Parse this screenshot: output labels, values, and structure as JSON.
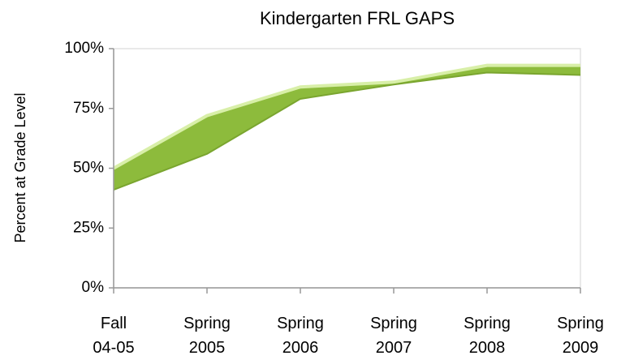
{
  "chart_data": {
    "type": "area_band",
    "title": "Kindergarten FRL GAPS",
    "y_label": "Percent at Grade Level",
    "categories": [
      "Fall\n04-05",
      "Spring\n2005",
      "Spring\n2006",
      "Spring\n2007",
      "Spring\n2008",
      "Spring\n2009"
    ],
    "series": [
      {
        "color": "#8dbb3c",
        "values": [
          50,
          72,
          84,
          86,
          93,
          93
        ]
      },
      {
        "color": "#8dbb3c",
        "values": [
          41,
          56,
          79,
          85,
          90,
          89
        ]
      }
    ],
    "ylim": [
      0,
      100
    ],
    "yticks": [
      {
        "value": 0,
        "label": "0%"
      },
      {
        "value": 25,
        "label": "25%"
      },
      {
        "value": 50,
        "label": "50%"
      },
      {
        "value": 75,
        "label": "75%"
      },
      {
        "value": 100,
        "label": "100%"
      }
    ],
    "grid": false
  }
}
